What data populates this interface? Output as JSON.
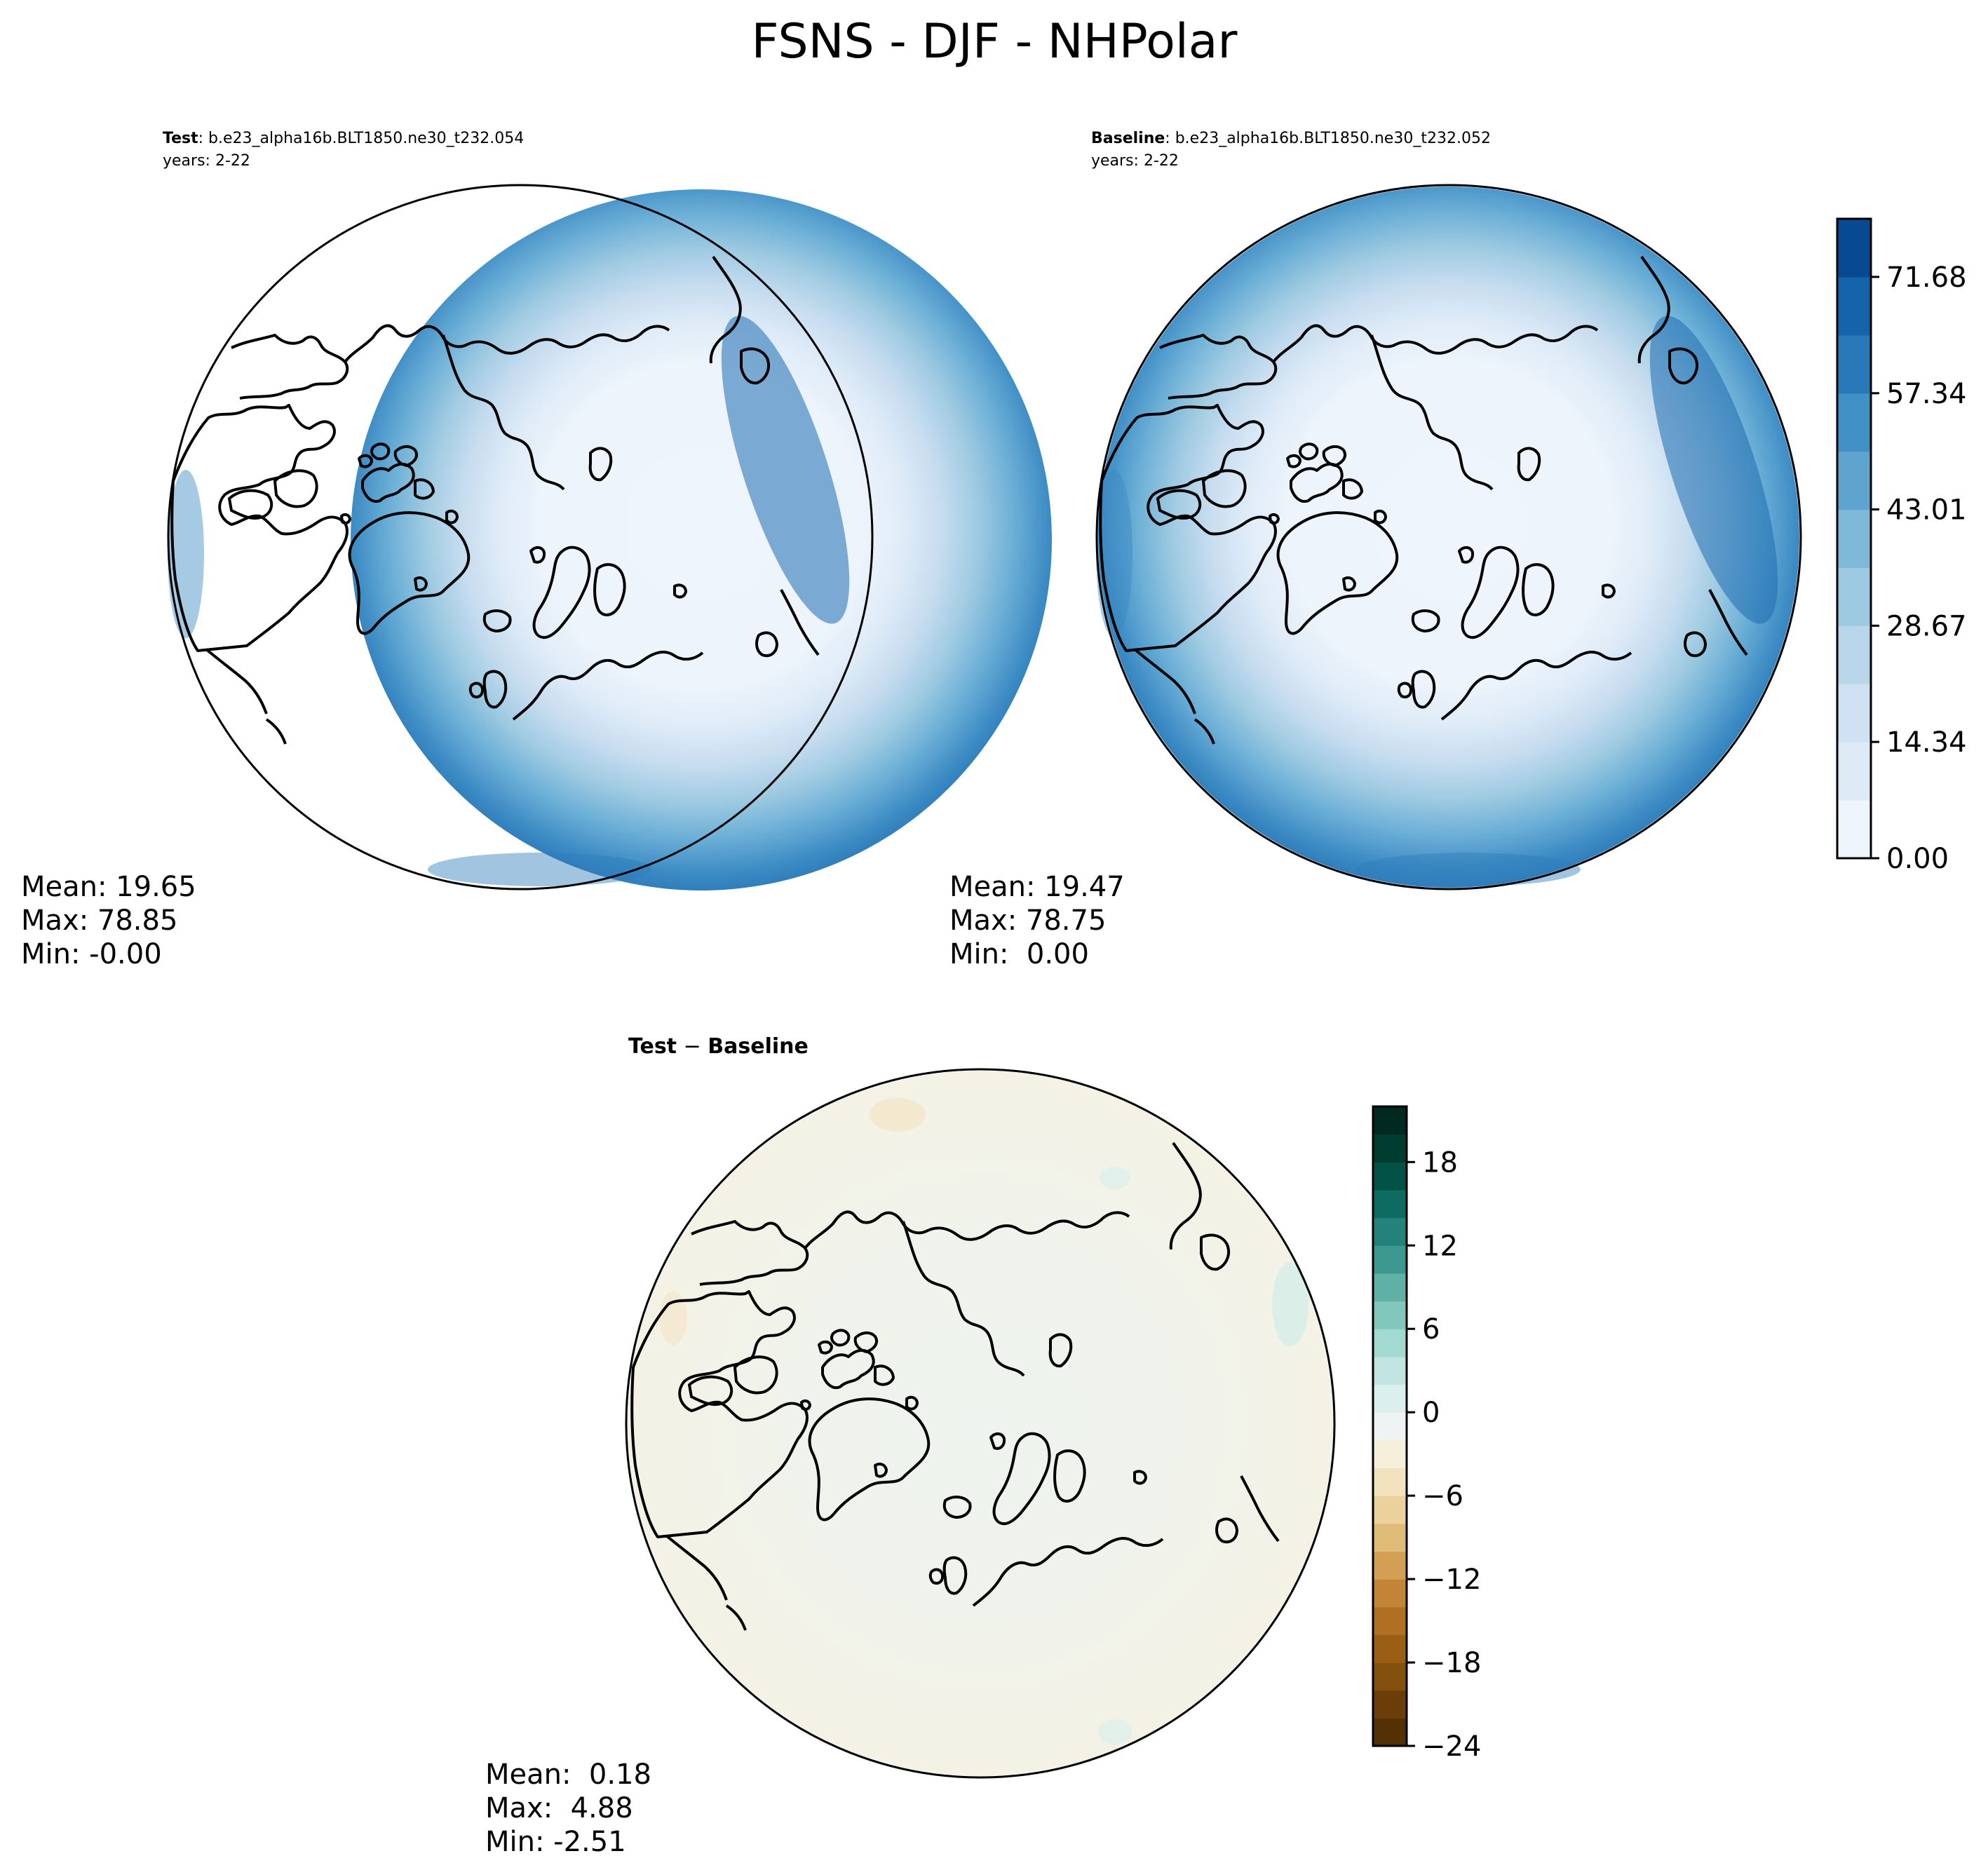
{
  "figure": {
    "title": "FSNS - DJF - NHPolar"
  },
  "chart_data": [
    {
      "type": "heatmap",
      "projection": "north-polar-stereographic",
      "label_bold": "Test",
      "label_rest": ": b.e23_alpha16b.BLT1850.ne30_t232.054",
      "years": "years: 2-22",
      "colormap": "Blues",
      "stats": {
        "mean": "Mean: 19.65",
        "max": "Max: 78.85",
        "min": "Min: -0.00"
      }
    },
    {
      "type": "heatmap",
      "projection": "north-polar-stereographic",
      "label_bold": "Baseline",
      "label_rest": ": b.e23_alpha16b.BLT1850.ne30_t232.052",
      "years": "years: 2-22",
      "colormap": "Blues",
      "stats": {
        "mean": "Mean: 19.47",
        "max": "Max: 78.75",
        "min": "Min:  0.00"
      },
      "colorbar": {
        "range": [
          0.0,
          78.85
        ],
        "ticks": [
          0.0,
          14.34,
          28.67,
          43.01,
          57.34,
          71.68
        ],
        "tick_labels": [
          "0.00",
          "14.34",
          "28.67",
          "43.01",
          "57.34",
          "71.68"
        ],
        "levels": 11,
        "colors": [
          "#eff5fc",
          "#deebf7",
          "#cfe1f2",
          "#bad6eb",
          "#9ecae1",
          "#7fb9da",
          "#5ea4cf",
          "#4191c6",
          "#2979b9",
          "#1563aa",
          "#084a91"
        ]
      }
    },
    {
      "type": "heatmap",
      "projection": "north-polar-stereographic",
      "label_bold": "Test",
      "label_sep": " − ",
      "label_bold2": "Baseline",
      "colormap": "BrBG",
      "stats": {
        "mean": "Mean:  0.18",
        "max": "Max:  4.88",
        "min": "Min: -2.51"
      },
      "colorbar": {
        "range": [
          -24,
          22
        ],
        "ticks": [
          -24,
          -18,
          -12,
          -6,
          0,
          6,
          12,
          18
        ],
        "tick_labels": [
          "−24",
          "−18",
          "−12",
          "−6",
          "0",
          "6",
          "12",
          "18"
        ],
        "level_step": 2,
        "colors": [
          "#543005",
          "#6b3d09",
          "#84500d",
          "#9a5f14",
          "#b06f22",
          "#c28437",
          "#d29f55",
          "#dfbb78",
          "#ebd19b",
          "#f2e2bd",
          "#f5efdc",
          "#edf4f3",
          "#dbefec",
          "#c1e6e1",
          "#a2d9d0",
          "#81c7bc",
          "#5fb1a6",
          "#3d9990",
          "#238279",
          "#0e6b62",
          "#025346",
          "#003c30",
          "#00291f"
        ]
      }
    }
  ]
}
